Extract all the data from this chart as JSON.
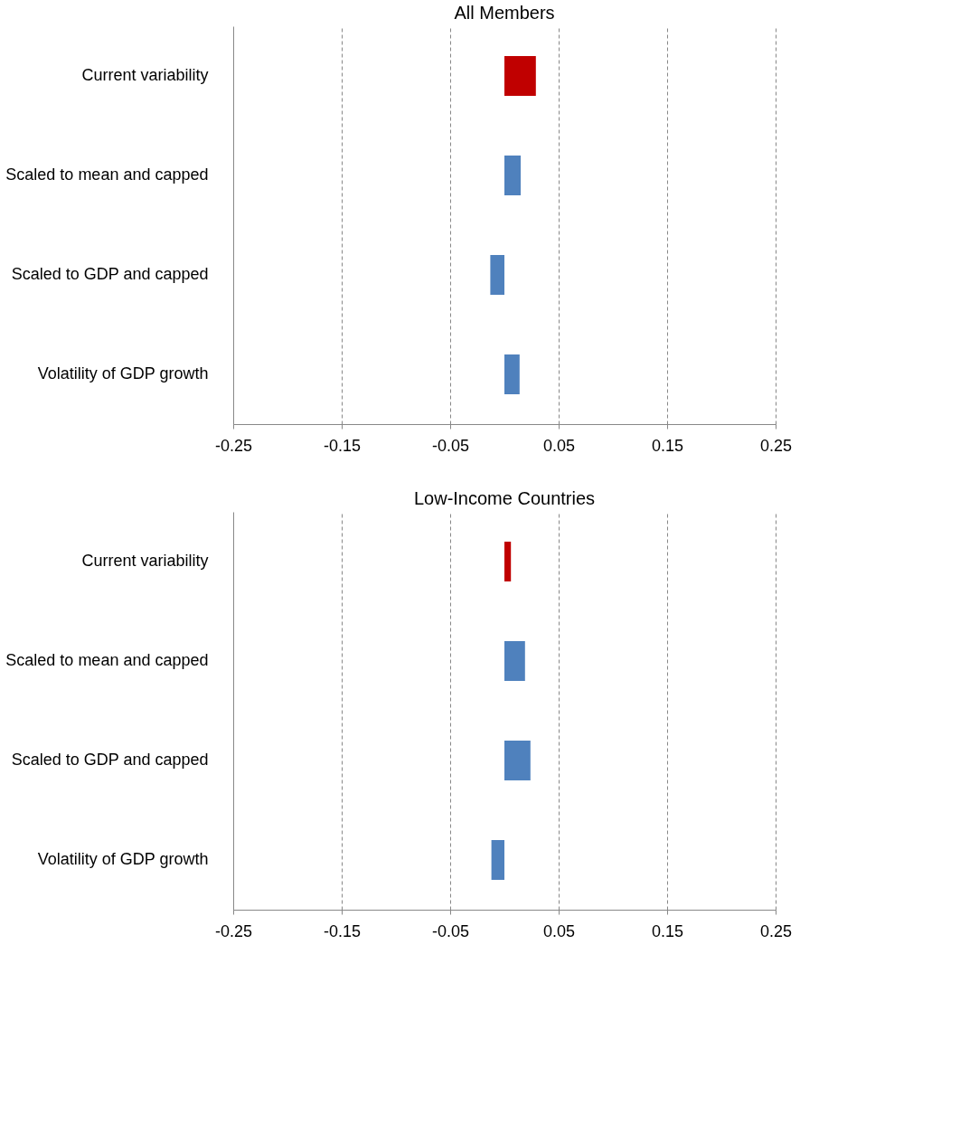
{
  "chart_data": [
    {
      "type": "bar",
      "orientation": "horizontal",
      "title": "All Members",
      "categories": [
        "Current variability",
        "Scaled to mean and capped",
        "Scaled to GDP and capped",
        "Volatility of GDP growth"
      ],
      "values": [
        0.029,
        0.015,
        -0.013,
        0.014
      ],
      "colors": [
        "#c00000",
        "#4f81bd",
        "#4f81bd",
        "#4f81bd"
      ],
      "xlim": [
        -0.25,
        0.25
      ],
      "xticks": [
        -0.25,
        -0.15,
        -0.05,
        0.05,
        0.15,
        0.25
      ],
      "grid": "x"
    },
    {
      "type": "bar",
      "orientation": "horizontal",
      "title": "Low-Income Countries",
      "categories": [
        "Current variability",
        "Scaled to mean and capped",
        "Scaled to GDP and capped",
        "Volatility of GDP growth"
      ],
      "values": [
        0.006,
        0.019,
        0.024,
        -0.012
      ],
      "colors": [
        "#c00000",
        "#4f81bd",
        "#4f81bd",
        "#4f81bd"
      ],
      "xlim": [
        -0.25,
        0.25
      ],
      "xticks": [
        -0.25,
        -0.15,
        -0.05,
        0.05,
        0.15,
        0.25
      ],
      "grid": "x"
    }
  ]
}
